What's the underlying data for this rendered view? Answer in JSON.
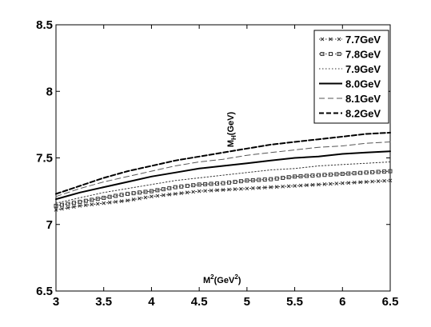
{
  "chart_data": {
    "type": "line",
    "xlabel": "M²(GeV²)",
    "ylabel": "M_H(GeV)",
    "xlim": [
      3,
      6.5
    ],
    "ylim": [
      6.5,
      8.5
    ],
    "xticks": [
      "3",
      "3.5",
      "4",
      "4.5",
      "5",
      "5.5",
      "6",
      "6.5"
    ],
    "yticks": [
      "6.5",
      "7",
      "7.5",
      "8",
      "8.5"
    ],
    "grid": false,
    "legend_position": "top-right",
    "x": [
      3.0,
      3.25,
      3.5,
      3.75,
      4.0,
      4.25,
      4.5,
      4.75,
      5.0,
      5.25,
      5.5,
      5.75,
      6.0,
      6.25,
      6.5
    ],
    "series": [
      {
        "name": "7.7GeV",
        "style": "dotted-x",
        "values": [
          7.11,
          7.14,
          7.16,
          7.18,
          7.21,
          7.23,
          7.25,
          7.26,
          7.27,
          7.28,
          7.29,
          7.3,
          7.31,
          7.32,
          7.33
        ]
      },
      {
        "name": "7.8GeV",
        "style": "dotted-square",
        "values": [
          7.14,
          7.17,
          7.2,
          7.23,
          7.25,
          7.28,
          7.3,
          7.31,
          7.33,
          7.34,
          7.36,
          7.37,
          7.38,
          7.39,
          7.4
        ]
      },
      {
        "name": "7.9GeV",
        "style": "dotted",
        "values": [
          7.16,
          7.2,
          7.24,
          7.27,
          7.3,
          7.33,
          7.35,
          7.37,
          7.39,
          7.41,
          7.42,
          7.44,
          7.45,
          7.46,
          7.47
        ]
      },
      {
        "name": "8.0GeV",
        "style": "solid",
        "values": [
          7.19,
          7.24,
          7.28,
          7.32,
          7.36,
          7.39,
          7.42,
          7.44,
          7.46,
          7.48,
          7.5,
          7.51,
          7.53,
          7.54,
          7.55
        ]
      },
      {
        "name": "8.1GeV",
        "style": "dashed-thin",
        "values": [
          7.21,
          7.27,
          7.32,
          7.36,
          7.4,
          7.44,
          7.47,
          7.49,
          7.52,
          7.54,
          7.56,
          7.58,
          7.59,
          7.61,
          7.62
        ]
      },
      {
        "name": "8.2GeV",
        "style": "dashed-thick",
        "values": [
          7.23,
          7.29,
          7.35,
          7.4,
          7.44,
          7.48,
          7.51,
          7.54,
          7.57,
          7.6,
          7.62,
          7.64,
          7.66,
          7.68,
          7.69
        ]
      }
    ]
  }
}
